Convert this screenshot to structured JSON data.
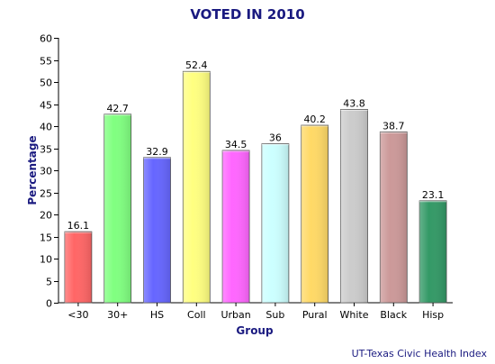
{
  "chart_data": {
    "type": "bar",
    "title": "VOTED IN 2010",
    "xlabel": "Group",
    "ylabel": "Percentage",
    "ylim": [
      0,
      60
    ],
    "yticks": [
      0,
      5,
      10,
      15,
      20,
      25,
      30,
      35,
      40,
      45,
      50,
      55,
      60
    ],
    "grid": false,
    "categories": [
      "<30",
      "30+",
      "HS",
      "Coll",
      "Urban",
      "Sub",
      "Pural",
      "White",
      "Black",
      "Hisp"
    ],
    "values": [
      16.1,
      42.7,
      32.9,
      52.4,
      34.5,
      36,
      40.2,
      43.8,
      38.7,
      23.1
    ],
    "data_labels": [
      "16.1",
      "42.7",
      "32.9",
      "52.4",
      "34.5",
      "36",
      "40.2",
      "43.8",
      "38.7",
      "23.1"
    ],
    "colors": [
      "#ff6666",
      "#80ff80",
      "#6666ff",
      "#ffff80",
      "#ff66ff",
      "#ccffff",
      "#ffd966",
      "#cccccc",
      "#cc9999",
      "#339966"
    ],
    "source": "UT-Texas Civic Health Index"
  }
}
